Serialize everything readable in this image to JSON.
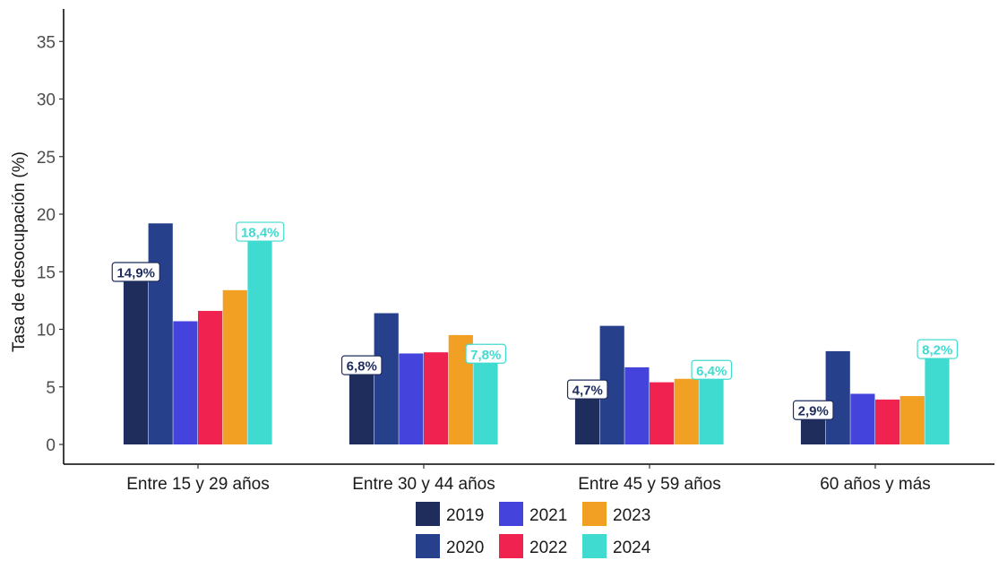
{
  "chart_data": {
    "type": "bar",
    "ylabel": "Tasa de desocupación (%)",
    "xlabel": "",
    "ylim": [
      0,
      37
    ],
    "yticks": [
      0,
      5,
      10,
      15,
      20,
      25,
      30,
      35
    ],
    "categories": [
      "Entre 15 y 29 años",
      "Entre 30 y 44 años",
      "Entre 45 y 59 años",
      "60 años y más"
    ],
    "series": [
      {
        "name": "2019",
        "color": "#1f2d5c",
        "values": [
          14.9,
          6.8,
          4.7,
          2.9
        ]
      },
      {
        "name": "2020",
        "color": "#27408b",
        "values": [
          19.2,
          11.4,
          10.3,
          8.1
        ]
      },
      {
        "name": "2021",
        "color": "#4444dd",
        "values": [
          10.7,
          7.9,
          6.7,
          4.4
        ]
      },
      {
        "name": "2022",
        "color": "#f0224f",
        "values": [
          11.6,
          8.0,
          5.4,
          3.9
        ]
      },
      {
        "name": "2023",
        "color": "#f2a024",
        "values": [
          13.4,
          9.5,
          5.7,
          4.2
        ]
      },
      {
        "name": "2024",
        "color": "#40dbd0",
        "values": [
          18.4,
          7.8,
          6.4,
          8.2
        ]
      }
    ],
    "data_labels": {
      "2019": [
        "14,9%",
        "6,8%",
        "4,7%",
        "2,9%"
      ],
      "2024": [
        "18,4%",
        "7,8%",
        "6,4%",
        "8,2%"
      ]
    },
    "legend_position": "bottom",
    "grid": false
  }
}
